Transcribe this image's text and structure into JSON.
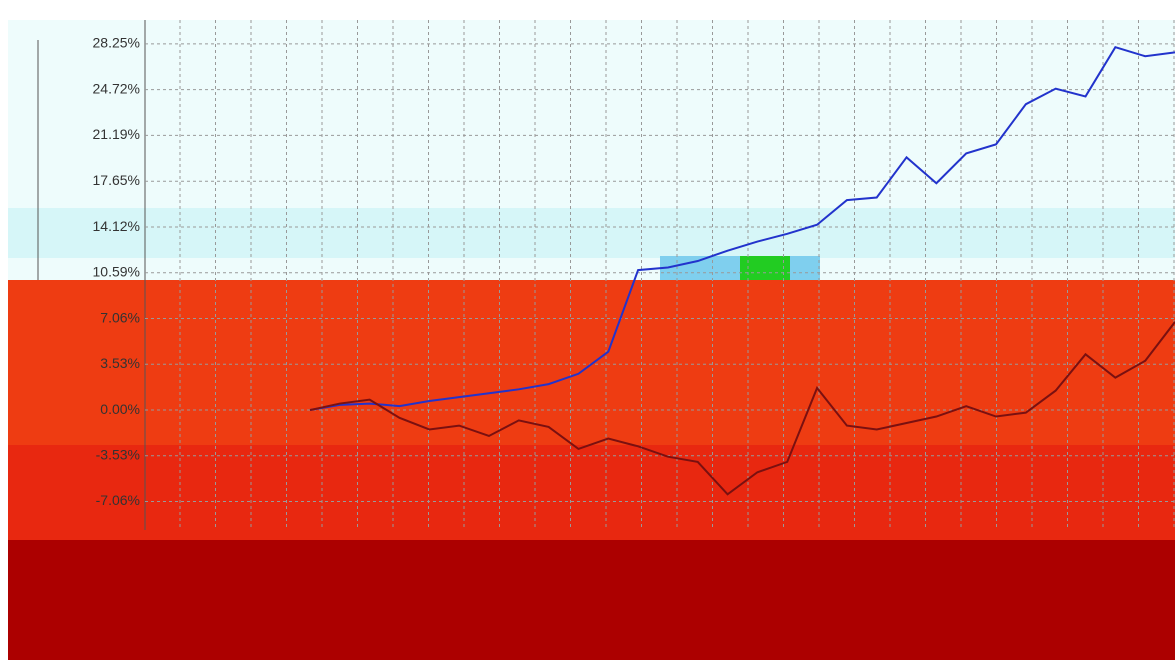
{
  "chart_data": {
    "type": "line",
    "ylim": [
      -8.87,
      31.64
    ],
    "yticks": [
      {
        "value": 28.25,
        "label": "28.25%"
      },
      {
        "value": 24.72,
        "label": "24.72%"
      },
      {
        "value": 21.19,
        "label": "21.19%"
      },
      {
        "value": 17.65,
        "label": "17.65%"
      },
      {
        "value": 14.12,
        "label": "14.12%"
      },
      {
        "value": 10.59,
        "label": "10.59%"
      },
      {
        "value": 7.06,
        "label": "7.06%"
      },
      {
        "value": 3.53,
        "label": "3.53%"
      },
      {
        "value": 0,
        "label": "0.00%"
      },
      {
        "value": -3.53,
        "label": "-3.53%"
      },
      {
        "value": -7.06,
        "label": "-7.06%"
      }
    ],
    "grid": true,
    "series": [
      {
        "color": "#2233cc",
        "values": [
          0,
          0.4,
          0.5,
          0.3,
          0.7,
          1.0,
          1.3,
          1.6,
          2.0,
          2.8,
          4.5,
          10.8,
          11.0,
          11.5,
          12.3,
          13.0,
          13.6,
          14.3,
          16.2,
          16.4,
          19.5,
          17.5,
          19.8,
          20.5,
          23.6,
          24.8,
          24.2,
          28.0,
          27.3,
          27.6
        ]
      },
      {
        "color": "#7a1010",
        "values": [
          0,
          0.5,
          0.8,
          -0.6,
          -1.5,
          -1.2,
          -2.0,
          -0.8,
          -1.3,
          -3.0,
          -2.2,
          -2.8,
          -3.6,
          -4.0,
          -6.5,
          -4.8,
          -4.0,
          1.7,
          -1.2,
          -1.5,
          -1.0,
          -0.5,
          0.3,
          -0.5,
          -0.2,
          1.5,
          4.3,
          2.5,
          3.8,
          6.8
        ]
      }
    ]
  }
}
